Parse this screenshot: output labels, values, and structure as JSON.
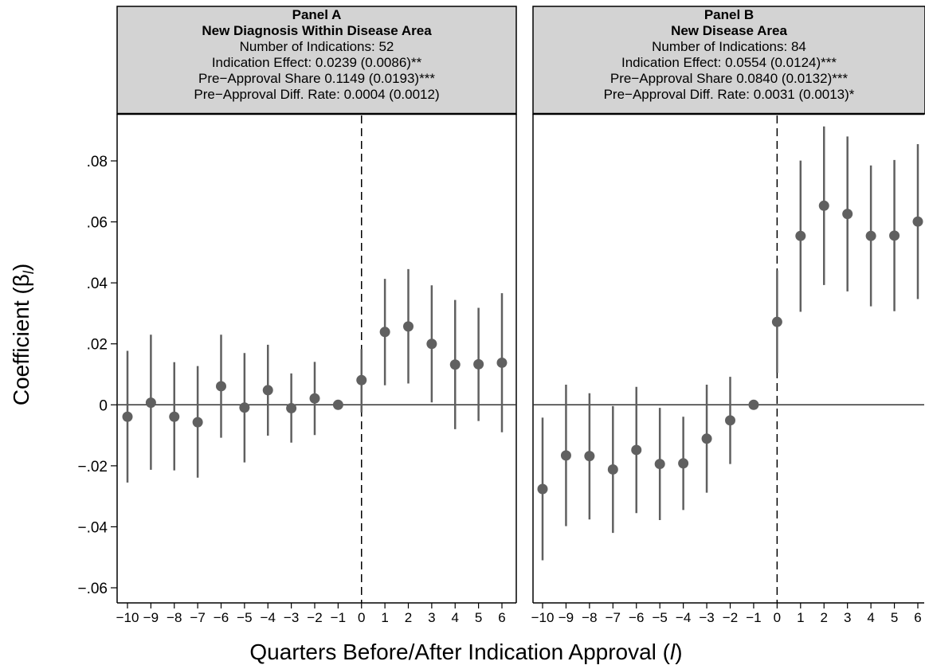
{
  "chart_data": {
    "type": "scatter",
    "ylabel": "Coefficient (β",
    "ylabel_sub": "l",
    "ylabel_close": ")",
    "xlabel": "Quarters Before/After Indication Approval (",
    "xlabel_var": "l",
    "xlabel_close": ")",
    "ylim": [
      -0.065,
      0.095
    ],
    "yticks": [
      0.08,
      0.06,
      0.04,
      0.02,
      0,
      -0.02,
      -0.04,
      -0.06
    ],
    "ytick_labels": [
      ".08",
      ".06",
      ".04",
      ".02",
      "0",
      "−.02",
      "−.04",
      "−.06"
    ],
    "x": [
      -10,
      -9,
      -8,
      -7,
      -6,
      -5,
      -4,
      -3,
      -2,
      -1,
      0,
      1,
      2,
      3,
      4,
      5,
      6
    ],
    "xtick_labels": [
      "−10",
      "−9",
      "−8",
      "−7",
      "−6",
      "−5",
      "−4",
      "−3",
      "−2",
      "−1",
      "0",
      "1",
      "2",
      "3",
      "4",
      "5",
      "6"
    ],
    "grid": false,
    "reference_lines": {
      "horizontal_y": 0,
      "vertical_x": 0
    },
    "colors": {
      "marker": "#606060",
      "whisker": "#606060",
      "header_bg": "#d3d3d3",
      "frame": "#000000"
    },
    "panels": [
      {
        "name": "Panel A",
        "header": [
          "Panel A",
          "New Diagnosis Within Disease Area",
          "Number of Indications: 52",
          "Indication Effect: 0.0239 (0.0086)**",
          "Pre−Approval Share 0.1149 (0.0193)***",
          "Pre−Approval Diff. Rate: 0.0004 (0.0012)"
        ],
        "coefficients": [
          -0.0039,
          0.0007,
          -0.0039,
          -0.0057,
          0.0061,
          -0.0009,
          0.0048,
          -0.0011,
          0.0021,
          0.0,
          0.0081,
          0.0239,
          0.0257,
          0.02,
          0.0132,
          0.0133,
          0.0138
        ],
        "ci_low": [
          -0.0255,
          -0.0213,
          -0.0215,
          -0.0239,
          -0.0108,
          -0.0189,
          -0.0101,
          -0.0124,
          -0.0099,
          0.0,
          -0.0025,
          0.0064,
          0.007,
          0.0008,
          -0.008,
          -0.0053,
          -0.009
        ],
        "ci_high": [
          0.0177,
          0.023,
          0.014,
          0.0127,
          0.023,
          0.017,
          0.0197,
          0.0103,
          0.0141,
          0.0,
          0.0183,
          0.0413,
          0.0445,
          0.0392,
          0.0344,
          0.0318,
          0.0366
        ]
      },
      {
        "name": "Panel B",
        "header": [
          "Panel B",
          "New Disease Area",
          "Number of Indications: 84",
          "Indication Effect: 0.0554 (0.0124)***",
          "Pre−Approval Share 0.0840 (0.0132)***",
          "Pre−Approval Diff. Rate: 0.0031 (0.0013)*"
        ],
        "coefficients": [
          -0.0276,
          -0.0166,
          -0.0168,
          -0.0212,
          -0.0148,
          -0.0194,
          -0.0192,
          -0.0111,
          -0.0051,
          0.0,
          0.0272,
          0.0554,
          0.0653,
          0.0626,
          0.0554,
          0.0555,
          0.0601
        ],
        "ci_low": [
          -0.051,
          -0.0398,
          -0.0376,
          -0.042,
          -0.0355,
          -0.0378,
          -0.0345,
          -0.0288,
          -0.0194,
          0.0,
          0.0105,
          0.0305,
          0.0393,
          0.0372,
          0.0323,
          0.0307,
          0.0347
        ],
        "ci_high": [
          -0.0042,
          0.0066,
          0.0038,
          -0.0004,
          0.0059,
          -0.001,
          -0.0039,
          0.0066,
          0.0092,
          0.0,
          0.0441,
          0.0801,
          0.0913,
          0.088,
          0.0785,
          0.0803,
          0.0855
        ]
      }
    ]
  }
}
